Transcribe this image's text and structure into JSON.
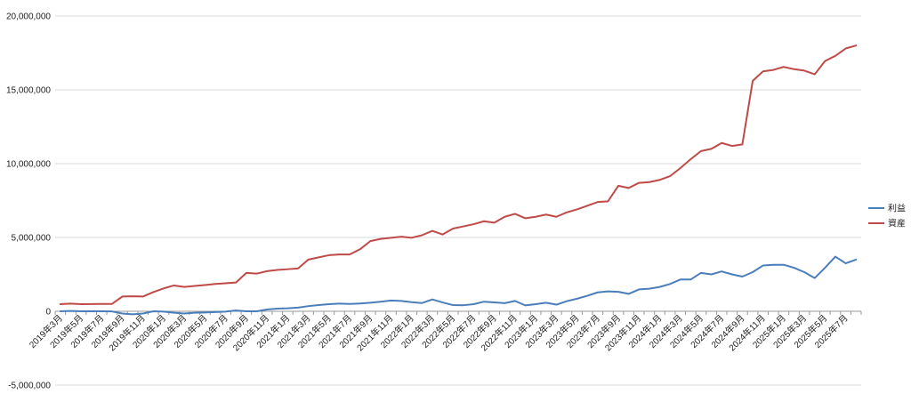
{
  "chart_data": {
    "type": "line",
    "title": "",
    "xlabel": "",
    "ylabel": "",
    "ylim": [
      -5000000,
      20000000
    ],
    "y_ticks": [
      -5000000,
      0,
      5000000,
      10000000,
      15000000,
      20000000
    ],
    "y_tick_labels": [
      "-5,000,000",
      "0",
      "5,000,000",
      "10,000,000",
      "15,000,000",
      "20,000,000"
    ],
    "grid": "horizontal",
    "legend_position": "right",
    "categories": [
      "2019年3月",
      "2019年4月",
      "2019年5月",
      "2019年6月",
      "2019年7月",
      "2019年8月",
      "2019年9月",
      "2019年10月",
      "2019年11月",
      "2019年12月",
      "2020年1月",
      "2020年2月",
      "2020年3月",
      "2020年4月",
      "2020年5月",
      "2020年6月",
      "2020年7月",
      "2020年8月",
      "2020年9月",
      "2020年10月",
      "2020年11月",
      "2020年12月",
      "2021年1月",
      "2021年2月",
      "2021年3月",
      "2021年4月",
      "2021年5月",
      "2021年6月",
      "2021年7月",
      "2021年8月",
      "2021年9月",
      "2021年10月",
      "2021年11月",
      "2021年12月",
      "2022年1月",
      "2022年2月",
      "2022年3月",
      "2022年4月",
      "2022年5月",
      "2022年6月",
      "2022年7月",
      "2022年8月",
      "2022年9月",
      "2022年10月",
      "2022年11月",
      "2022年12月",
      "2023年1月",
      "2023年2月",
      "2023年3月",
      "2023年4月",
      "2023年5月",
      "2023年6月",
      "2023年7月",
      "2023年8月",
      "2023年9月",
      "2023年10月",
      "2023年11月",
      "2023年12月",
      "2024年1月",
      "2024年2月",
      "2024年3月",
      "2024年4月",
      "2024年5月",
      "2024年6月",
      "2024年7月",
      "2024年8月",
      "2024年9月",
      "2024年10月",
      "2024年11月",
      "2024年12月",
      "2025年1月",
      "2025年2月",
      "2025年3月",
      "2025年4月",
      "2025年5月",
      "2025年6月",
      "2025年7月",
      "2025年8月"
    ],
    "series": [
      {
        "name": "利益",
        "color": "#4a7ebb",
        "values": [
          0,
          20000,
          0,
          10000,
          0,
          -10000,
          -150000,
          -200000,
          -150000,
          0,
          -20000,
          -100000,
          -150000,
          -100000,
          -80000,
          -50000,
          -20000,
          50000,
          0,
          0,
          120000,
          180000,
          200000,
          250000,
          350000,
          420000,
          480000,
          520000,
          500000,
          530000,
          580000,
          650000,
          730000,
          700000,
          620000,
          560000,
          800000,
          600000,
          420000,
          410000,
          480000,
          650000,
          600000,
          550000,
          700000,
          400000,
          480000,
          580000,
          450000,
          680000,
          850000,
          1050000,
          1280000,
          1350000,
          1320000,
          1180000,
          1480000,
          1530000,
          1650000,
          1850000,
          2150000,
          2150000,
          2600000,
          2500000,
          2700000,
          2500000,
          2350000,
          2650000,
          3100000,
          3150000,
          3150000,
          2950000,
          2650000,
          2250000,
          2950000,
          3700000,
          3250000,
          3500000
        ]
      },
      {
        "name": "資産",
        "color": "#be4b48",
        "values": [
          480000,
          520000,
          480000,
          490000,
          500000,
          500000,
          1000000,
          1020000,
          1000000,
          1300000,
          1550000,
          1750000,
          1650000,
          1720000,
          1780000,
          1850000,
          1900000,
          1950000,
          2600000,
          2550000,
          2720000,
          2800000,
          2850000,
          2900000,
          3500000,
          3650000,
          3800000,
          3850000,
          3850000,
          4200000,
          4750000,
          4900000,
          4980000,
          5050000,
          4980000,
          5150000,
          5450000,
          5200000,
          5600000,
          5750000,
          5900000,
          6100000,
          6000000,
          6400000,
          6600000,
          6300000,
          6400000,
          6550000,
          6400000,
          6700000,
          6900000,
          7150000,
          7400000,
          7450000,
          8500000,
          8350000,
          8700000,
          8750000,
          8900000,
          9150000,
          9700000,
          10300000,
          10850000,
          11000000,
          11400000,
          11200000,
          11300000,
          15600000,
          16250000,
          16350000,
          16550000,
          16400000,
          16300000,
          16050000,
          16950000,
          17300000,
          17800000,
          18000000
        ]
      }
    ]
  }
}
